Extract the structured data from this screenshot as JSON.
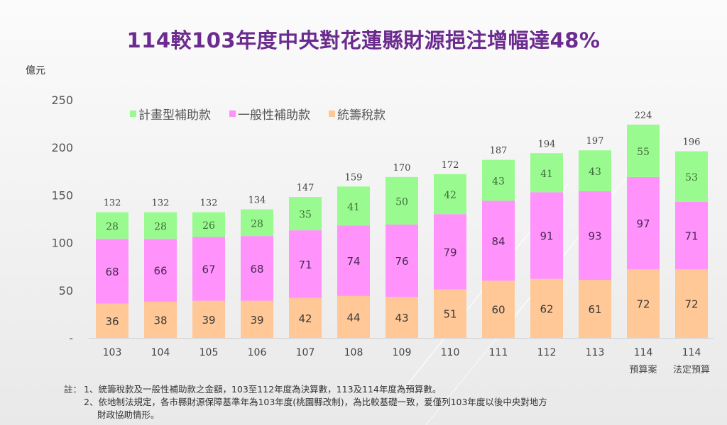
{
  "title": "114較103年度中央對花蓮縣財源挹注增幅達48%",
  "unit_label": "億元",
  "colors": {
    "project_subsidy": "#99fb8f",
    "general_subsidy": "#ff92fb",
    "tax_allocation": "#ffc896",
    "title": "#6b2b8f"
  },
  "notes": {
    "prefix": "註：",
    "items": [
      "1、統籌稅款及一般性補助款之金額，103至112年度為決算數，113及114年度為預算數。",
      "2、依地制法規定，各市縣財源保障基準年為103年度(桃園縣改制)，為比較基礎一致，爰僅列103年度以後中央對地方",
      "財政協助情形。"
    ]
  },
  "chart_data": {
    "type": "bar",
    "stacked": true,
    "title": "114較103年度中央對花蓮縣財源挹注增幅達48%",
    "xlabel": "",
    "ylabel": "億元",
    "ylim": [
      0,
      250
    ],
    "yticks": [
      0,
      50,
      100,
      150,
      200,
      250
    ],
    "ytick_labels": [
      "-",
      "50",
      "100",
      "150",
      "200",
      "250"
    ],
    "grid": false,
    "legend_position": "top-left",
    "categories": [
      "103",
      "104",
      "105",
      "106",
      "107",
      "108",
      "109",
      "110",
      "111",
      "112",
      "113",
      "114",
      "114"
    ],
    "category_sublabels": [
      "",
      "",
      "",
      "",
      "",
      "",
      "",
      "",
      "",
      "",
      "",
      "預算案",
      "法定預算"
    ],
    "series": [
      {
        "name": "統籌稅款",
        "key": "tax_allocation",
        "values": [
          36,
          38,
          39,
          39,
          42,
          44,
          43,
          51,
          60,
          62,
          61,
          72,
          72
        ]
      },
      {
        "name": "一般性補助款",
        "key": "general_subsidy",
        "values": [
          68,
          66,
          67,
          68,
          71,
          74,
          76,
          79,
          84,
          91,
          93,
          97,
          71
        ]
      },
      {
        "name": "計畫型補助款",
        "key": "project_subsidy",
        "values": [
          28,
          28,
          26,
          28,
          35,
          41,
          50,
          42,
          43,
          41,
          43,
          55,
          53
        ]
      }
    ],
    "legend_order": [
      "計畫型補助款",
      "一般性補助款",
      "統籌稅款"
    ],
    "totals": [
      132,
      132,
      132,
      134,
      147,
      159,
      170,
      172,
      187,
      194,
      197,
      224,
      196
    ]
  }
}
